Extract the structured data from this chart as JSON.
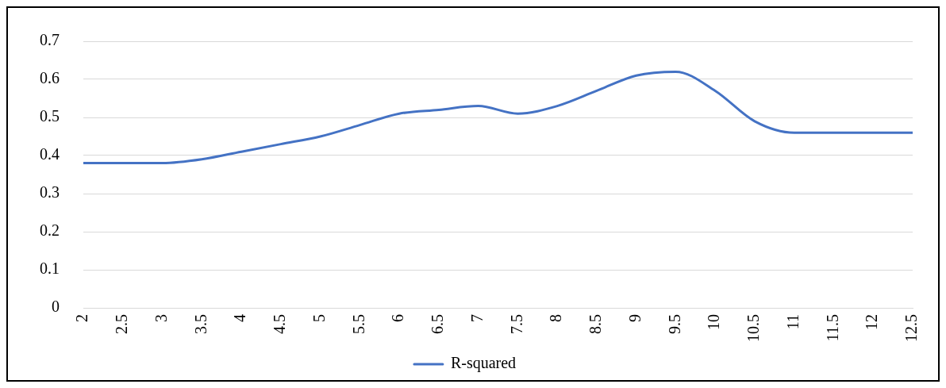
{
  "chart_data": {
    "type": "line",
    "categories": [
      "2",
      "2.5",
      "3",
      "3.5",
      "4",
      "4.5",
      "5",
      "5.5",
      "6",
      "6.5",
      "7",
      "7.5",
      "8",
      "8.5",
      "9",
      "9.5",
      "10",
      "10.5",
      "11",
      "11.5",
      "12",
      "12.5"
    ],
    "series": [
      {
        "name": "R-squared",
        "color": "#4472c4",
        "values": [
          0.38,
          0.38,
          0.38,
          0.39,
          0.41,
          0.43,
          0.45,
          0.48,
          0.51,
          0.52,
          0.53,
          0.51,
          0.53,
          0.57,
          0.61,
          0.62,
          0.57,
          0.49,
          0.46,
          0.46,
          0.46,
          0.46
        ]
      }
    ],
    "ylim": [
      0,
      0.7
    ],
    "yticks": [
      0,
      0.1,
      0.2,
      0.3,
      0.4,
      0.5,
      0.6,
      0.7
    ],
    "grid": "y",
    "legend": "bottom",
    "marker": "none",
    "line_style": "solid"
  }
}
